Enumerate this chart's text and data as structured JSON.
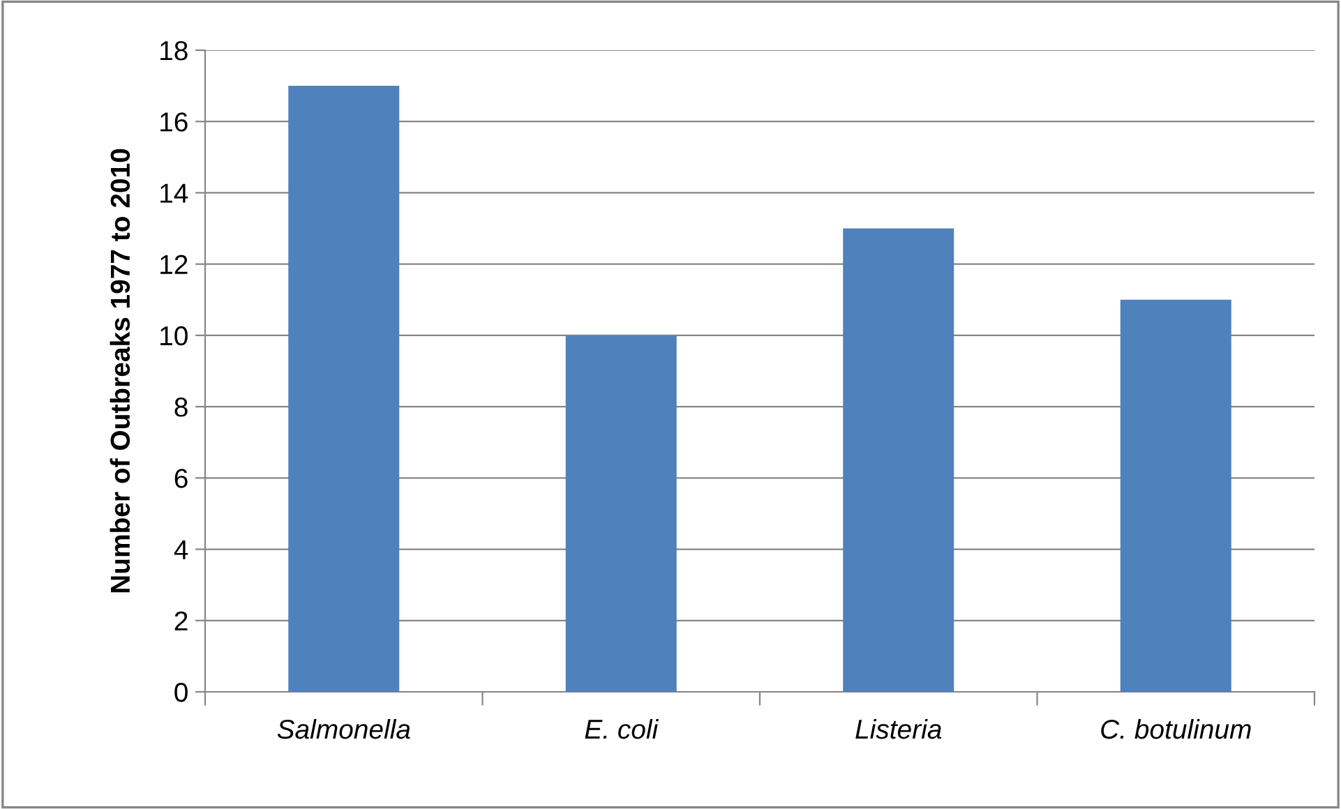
{
  "chart_data": {
    "type": "bar",
    "ylabel": "Number of Outbreaks 1977 to 2010",
    "categories": [
      "Salmonella",
      "E. coli",
      "Listeria",
      "C. botulinum"
    ],
    "values": [
      17,
      10,
      13,
      11
    ],
    "color": "#4f81bd",
    "ylim": [
      0,
      18
    ],
    "yticks": [
      0,
      2,
      4,
      6,
      8,
      10,
      12,
      14,
      16,
      18
    ],
    "grid": "y",
    "legend": false
  }
}
